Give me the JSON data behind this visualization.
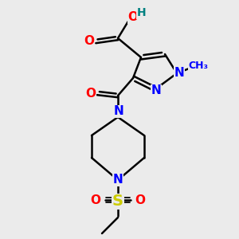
{
  "background_color": "#ebebeb",
  "bond_color": "#000000",
  "bond_width": 1.8,
  "atom_colors": {
    "O": "#ff0000",
    "N": "#0000ff",
    "S": "#cccc00",
    "H": "#008080"
  },
  "font_size": 11
}
